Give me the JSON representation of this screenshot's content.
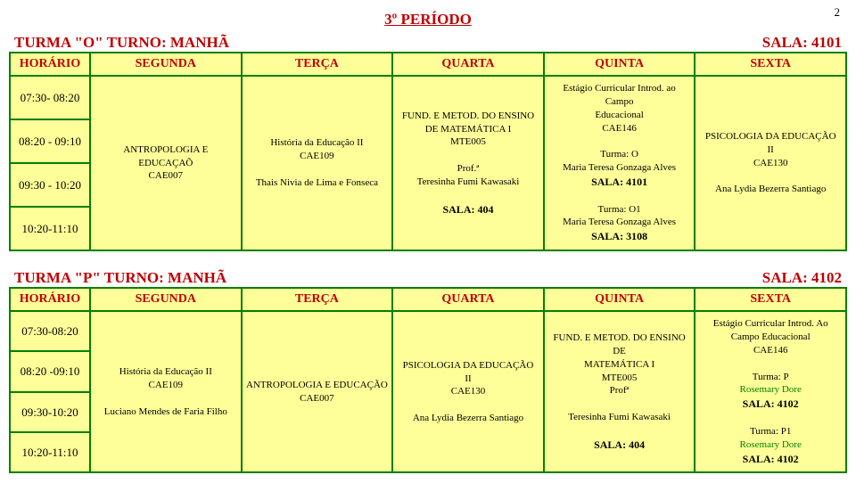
{
  "page_number": "2",
  "period_title": "3º PERÍODO",
  "tableO": {
    "turma_label": "TURMA \"O\"   TURNO: MANHÃ",
    "sala_label": "SALA:  4101",
    "headers": [
      "HORÁRIO",
      "SEGUNDA",
      "TERÇA",
      "QUARTA",
      "QUINTA",
      "SEXTA"
    ],
    "times": [
      "07:30- 08:20",
      "08:20 - 09:10",
      "09:30 - 10:20",
      "10:20-11:10"
    ],
    "seg": {
      "l1": "ANTROPOLOGIA E",
      "l2": "EDUCAÇAÕ",
      "l3": "CAE007"
    },
    "ter": {
      "l1": "História da Educação II",
      "l2": "CAE109",
      "l3": "Thais Nivia de Lima e Fonseca"
    },
    "qua": {
      "l1": "FUND. E METOD. DO ENSINO",
      "l2": "DE MATEMÁTICA I",
      "l3": "MTE005",
      "l4": "Prof.ª",
      "l5": "Teresinha Fumi Kawasaki",
      "sala": "SALA: 404"
    },
    "qui": {
      "l1": "Estágio Curricular Introd. ao Campo",
      "l2": "Educacional",
      "l3": "CAE146",
      "l4": "Turma: O",
      "l5": "Maria Teresa Gonzaga Alves",
      "sala1": "SALA: 4101",
      "l6": "Turma: O1",
      "l7": "Maria Teresa Gonzaga Alves",
      "sala2": "SALA: 3108"
    },
    "sex": {
      "l1": "PSICOLOGIA DA EDUCAÇÃO",
      "l2": "II",
      "l3": "CAE130",
      "l4": "Ana Lydia Bezerra Santiago"
    }
  },
  "tableP": {
    "turma_label": "TURMA \"P\"   TURNO: MANHÃ",
    "sala_label": "SALA: 4102",
    "headers": [
      "HORÁRIO",
      "SEGUNDA",
      "TERÇA",
      "QUARTA",
      "QUINTA",
      "SEXTA"
    ],
    "times": [
      "07:30-08:20",
      "08:20 -09:10",
      "09:30-10:20",
      "10:20-11:10"
    ],
    "seg": {
      "l1": "História da Educação II",
      "l2": "CAE109",
      "l3": "Luciano Mendes de Faria Filho"
    },
    "ter": {
      "l1": "ANTROPOLOGIA E EDUCAÇÃO",
      "l2": "CAE007"
    },
    "qua": {
      "l1": "PSICOLOGIA DA EDUCAÇÃO",
      "l2": "II",
      "l3": "CAE130",
      "l4": "Ana Lydia Bezerra Santiago"
    },
    "qui": {
      "l1": "FUND. E METOD. DO ENSINO DE",
      "l2": "MATEMÁTICA I",
      "l3": "MTE005",
      "l4": "Profª",
      "l5": "Teresinha Fumi Kawasaki",
      "sala": "SALA: 404"
    },
    "sex": {
      "l1": "Estágio Curricular Introd. Ao",
      "l2": "Campo Educacional",
      "l3": "CAE146",
      "l4": "Turma: P",
      "l5": "Rosemary Dore",
      "sala1": "SALA: 4102",
      "l6": "Turma: P1",
      "l7": "Rosemary Dore",
      "sala2": "SALA: 4102"
    }
  }
}
